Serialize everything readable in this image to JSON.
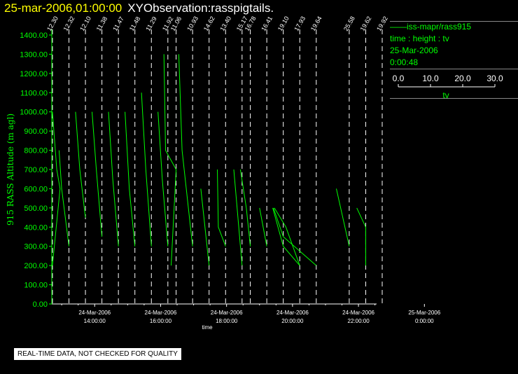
{
  "header": {
    "date": "25-mar-2006,01:00:00",
    "observation": "XYObservation:rasspigtails."
  },
  "legend": {
    "series": "iss-mapr/rass915",
    "axes": "time : height : tv",
    "date": "25-Mar-2006",
    "time": "0:00:48",
    "scale_ticks": [
      "0.0",
      "10.0",
      "20.0",
      "30.0"
    ],
    "scale_label": "tv"
  },
  "notice": "REAL-TIME DATA, NOT CHECKED FOR QUALITY",
  "colors": {
    "axis": "#00ff00",
    "trace": "#00ff00",
    "marker": "#ffffff",
    "title_date": "#ffff00"
  },
  "chart_data": {
    "type": "line",
    "ylabel": "915 RASS Altitude (m agl)",
    "xlabel": "time",
    "xlim": [
      12.7,
      22.55
    ],
    "ylim": [
      0,
      1400
    ],
    "yticks": [
      0,
      100,
      200,
      300,
      400,
      500,
      600,
      700,
      800,
      900,
      1000,
      1100,
      1200,
      1300,
      1400
    ],
    "x_ticks": [
      {
        "x": 14,
        "date": "24-Mar-2006",
        "time": "14:00:00"
      },
      {
        "x": 16,
        "date": "24-Mar-2006",
        "time": "16:00:00"
      },
      {
        "x": 18,
        "date": "24-Mar-2006",
        "time": "18:00:00"
      },
      {
        "x": 20,
        "date": "24-Mar-2006",
        "time": "20:00:00"
      },
      {
        "x": 22,
        "date": "24-Mar-2006",
        "time": "22:00:00"
      },
      {
        "x": 24,
        "date": "25-Mar-2006",
        "time": "0:00:00"
      }
    ],
    "profiles": [
      {
        "x": 12.72,
        "label": "12.30",
        "points": [
          [
            12.72,
            1000
          ],
          [
            12.85,
            700
          ],
          [
            12.95,
            600
          ],
          [
            12.72,
            200
          ]
        ]
      },
      {
        "x": 13.22,
        "label": "12.32",
        "points": [
          [
            12.92,
            800
          ],
          [
            13.0,
            600
          ],
          [
            13.22,
            300
          ]
        ]
      },
      {
        "x": 13.72,
        "label": "12.10",
        "points": [
          [
            13.42,
            1000
          ],
          [
            13.55,
            700
          ],
          [
            13.72,
            450
          ]
        ]
      },
      {
        "x": 14.22,
        "label": "11.38",
        "points": [
          [
            13.92,
            1000
          ],
          [
            14.05,
            700
          ],
          [
            14.22,
            350
          ]
        ]
      },
      {
        "x": 14.72,
        "label": "11.47",
        "points": [
          [
            14.42,
            1000
          ],
          [
            14.55,
            650
          ],
          [
            14.72,
            300
          ]
        ]
      },
      {
        "x": 15.22,
        "label": "11.48",
        "points": [
          [
            14.92,
            1000
          ],
          [
            15.05,
            600
          ],
          [
            15.22,
            300
          ]
        ]
      },
      {
        "x": 15.72,
        "label": "11.29",
        "points": [
          [
            15.42,
            1100
          ],
          [
            15.55,
            700
          ],
          [
            15.72,
            300
          ]
        ]
      },
      {
        "x": 16.22,
        "label": "11.92",
        "points": [
          [
            15.92,
            1000
          ],
          [
            16.05,
            650
          ],
          [
            16.22,
            300
          ]
        ]
      },
      {
        "x": 16.47,
        "label": "11.06",
        "points": [
          [
            16.1,
            1300
          ],
          [
            16.15,
            800
          ],
          [
            16.47,
            700
          ],
          [
            16.32,
            200
          ]
        ]
      },
      {
        "x": 16.97,
        "label": "10.93",
        "points": [
          [
            16.55,
            1300
          ],
          [
            16.65,
            800
          ],
          [
            16.97,
            300
          ]
        ]
      },
      {
        "x": 17.47,
        "label": "14.62",
        "points": [
          [
            17.22,
            600
          ],
          [
            17.47,
            200
          ]
        ]
      },
      {
        "x": 17.97,
        "label": "13.40",
        "points": [
          [
            17.72,
            700
          ],
          [
            17.75,
            400
          ],
          [
            17.97,
            300
          ]
        ]
      },
      {
        "x": 18.47,
        "label": "15.17",
        "points": [
          [
            18.22,
            700
          ],
          [
            18.47,
            200
          ]
        ]
      },
      {
        "x": 18.72,
        "label": "16.78",
        "points": [
          [
            18.42,
            700
          ],
          [
            18.6,
            500
          ],
          [
            18.72,
            300
          ]
        ]
      },
      {
        "x": 19.22,
        "label": "16.41",
        "points": [
          [
            19.0,
            500
          ],
          [
            19.22,
            300
          ]
        ]
      },
      {
        "x": 19.72,
        "label": "19.10",
        "points": [
          [
            19.4,
            500
          ],
          [
            19.72,
            300
          ],
          [
            20.22,
            200
          ]
        ]
      },
      {
        "x": 20.22,
        "label": "17.93",
        "points": [
          [
            19.45,
            500
          ],
          [
            19.8,
            400
          ],
          [
            20.22,
            200
          ]
        ]
      },
      {
        "x": 20.72,
        "label": "19.64",
        "points": [
          [
            19.42,
            500
          ],
          [
            19.72,
            350
          ],
          [
            20.72,
            200
          ]
        ]
      },
      {
        "x": 21.72,
        "label": "25.58",
        "points": [
          [
            21.33,
            600
          ],
          [
            21.72,
            300
          ]
        ]
      },
      {
        "x": 22.22,
        "label": "19.62",
        "points": [
          [
            21.95,
            500
          ],
          [
            22.22,
            400
          ],
          [
            22.22,
            200
          ]
        ]
      },
      {
        "x": 22.72,
        "label": "19.92",
        "points": []
      }
    ]
  }
}
